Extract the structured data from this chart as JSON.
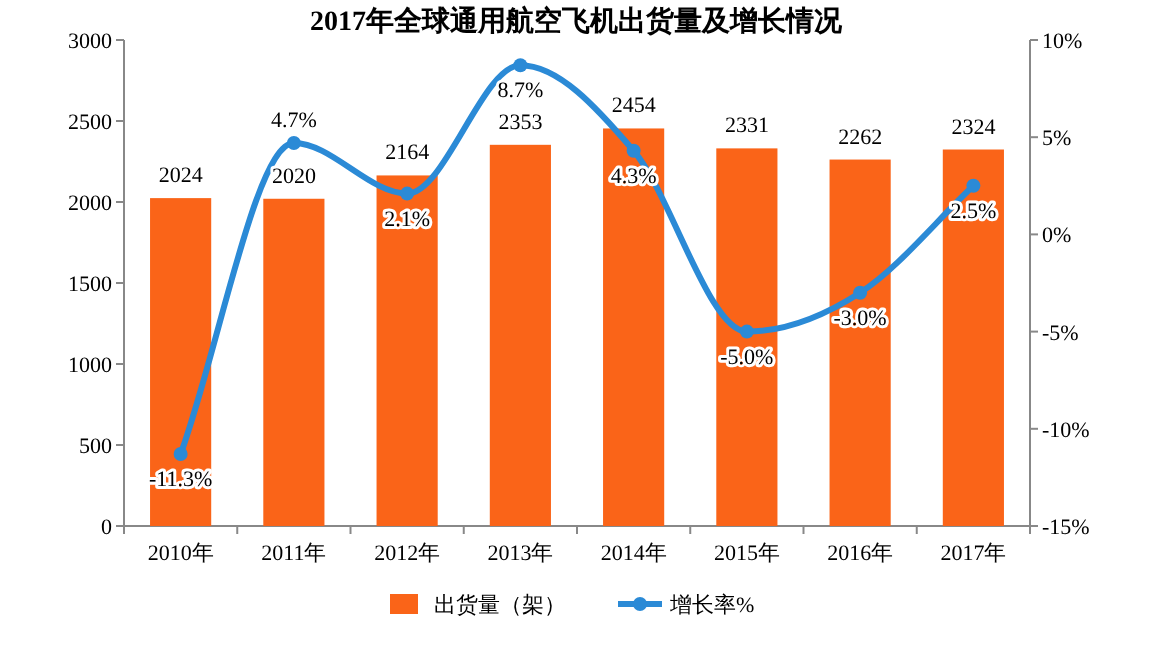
{
  "chart_data": {
    "type": "bar",
    "title": "2017年全球通用航空飞机出货量及增长情况",
    "categories": [
      "2010年",
      "2011年",
      "2012年",
      "2013年",
      "2014年",
      "2015年",
      "2016年",
      "2017年"
    ],
    "series": [
      {
        "name": "出货量（架）",
        "color": "#fa6418",
        "values": [
          2024,
          2020,
          2164,
          2353,
          2454,
          2331,
          2262,
          2324
        ],
        "value_labels": [
          "2024",
          "2020",
          "2164",
          "2353",
          "2454",
          "2331",
          "2262",
          "2324"
        ]
      },
      {
        "name": "增长率%",
        "type": "line",
        "axis": "y2",
        "color": "#2b8ad6",
        "marker": "circle",
        "values": [
          -11.3,
          4.7,
          2.1,
          8.7,
          4.3,
          -5.0,
          -3.0,
          2.5
        ],
        "value_labels": [
          "-11.3%",
          "4.7%",
          "2.1%",
          "8.7%",
          "4.3%",
          "-5.0%",
          "-3.0%",
          "2.5%"
        ]
      }
    ],
    "ylim": [
      0,
      3000
    ],
    "yticks": [
      0,
      500,
      1000,
      1500,
      2000,
      2500,
      3000
    ],
    "y2lim": [
      -15,
      10
    ],
    "y2ticks": [
      {
        "value": -15,
        "label": "-15%"
      },
      {
        "value": -10,
        "label": "-10%"
      },
      {
        "value": -5,
        "label": "-5%"
      },
      {
        "value": 0,
        "label": "0%"
      },
      {
        "value": 5,
        "label": "5%"
      },
      {
        "value": 10,
        "label": "10%"
      }
    ],
    "legend": "bottom",
    "grid": false
  }
}
